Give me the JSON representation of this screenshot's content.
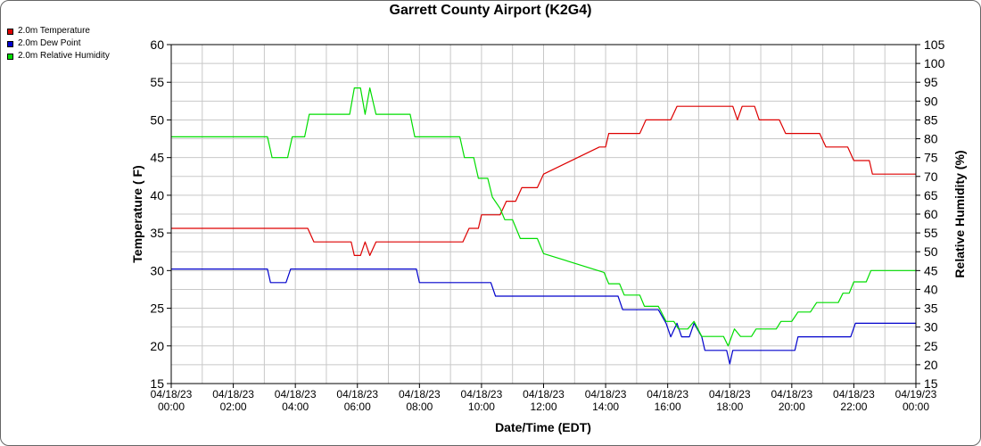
{
  "chart_data": {
    "type": "line",
    "title": "Garrett County Airport (K2G4)",
    "xlabel": "Date/Time (EDT)",
    "ylabel_left": "Temperature ( F)",
    "ylabel_right": "Relative Humidity (%)",
    "ylim_left": [
      15,
      60
    ],
    "ylim_right": [
      15,
      105
    ],
    "xlim_hours": [
      0,
      24
    ],
    "grid": true,
    "legend_position": "top-left",
    "yticks_left": [
      "15",
      "20",
      "25",
      "30",
      "35",
      "40",
      "45",
      "50",
      "55",
      "60"
    ],
    "yticks_right": [
      "15",
      "20",
      "25",
      "30",
      "35",
      "40",
      "45",
      "50",
      "55",
      "60",
      "65",
      "70",
      "75",
      "80",
      "85",
      "90",
      "95",
      "100",
      "105"
    ],
    "xticks": [
      {
        "date": "04/18/23",
        "time": "00:00"
      },
      {
        "date": "04/18/23",
        "time": "02:00"
      },
      {
        "date": "04/18/23",
        "time": "04:00"
      },
      {
        "date": "04/18/23",
        "time": "06:00"
      },
      {
        "date": "04/18/23",
        "time": "08:00"
      },
      {
        "date": "04/18/23",
        "time": "10:00"
      },
      {
        "date": "04/18/23",
        "time": "12:00"
      },
      {
        "date": "04/18/23",
        "time": "14:00"
      },
      {
        "date": "04/18/23",
        "time": "16:00"
      },
      {
        "date": "04/18/23",
        "time": "18:00"
      },
      {
        "date": "04/18/23",
        "time": "20:00"
      },
      {
        "date": "04/18/23",
        "time": "22:00"
      },
      {
        "date": "04/19/23",
        "time": "00:00"
      }
    ],
    "series": [
      {
        "name": "2.0m Temperature",
        "color": "#dd0000",
        "axis": "left",
        "points": [
          [
            0,
            35.6
          ],
          [
            4.4,
            35.6
          ],
          [
            4.6,
            33.8
          ],
          [
            5.8,
            33.8
          ],
          [
            5.9,
            32
          ],
          [
            6.1,
            32
          ],
          [
            6.25,
            33.8
          ],
          [
            6.4,
            32
          ],
          [
            6.6,
            33.8
          ],
          [
            9.4,
            33.8
          ],
          [
            9.6,
            35.6
          ],
          [
            9.9,
            35.6
          ],
          [
            10.0,
            37.4
          ],
          [
            10.6,
            37.4
          ],
          [
            10.8,
            39.2
          ],
          [
            11.1,
            39.2
          ],
          [
            11.3,
            41
          ],
          [
            11.8,
            41
          ],
          [
            12.0,
            42.8
          ],
          [
            13.8,
            46.4
          ],
          [
            14.0,
            46.4
          ],
          [
            14.1,
            48.2
          ],
          [
            15.1,
            48.2
          ],
          [
            15.3,
            50
          ],
          [
            16.1,
            50
          ],
          [
            16.3,
            51.8
          ],
          [
            18.1,
            51.8
          ],
          [
            18.25,
            50
          ],
          [
            18.4,
            51.8
          ],
          [
            18.8,
            51.8
          ],
          [
            18.95,
            50
          ],
          [
            19.6,
            50
          ],
          [
            19.8,
            48.2
          ],
          [
            20.9,
            48.2
          ],
          [
            21.1,
            46.4
          ],
          [
            21.8,
            46.4
          ],
          [
            22.0,
            44.6
          ],
          [
            22.5,
            44.6
          ],
          [
            22.6,
            42.8
          ],
          [
            24,
            42.8
          ]
        ]
      },
      {
        "name": "2.0m Dew Point",
        "color": "#0000cc",
        "axis": "left",
        "points": [
          [
            0,
            30.2
          ],
          [
            3.1,
            30.2
          ],
          [
            3.2,
            28.4
          ],
          [
            3.7,
            28.4
          ],
          [
            3.85,
            30.2
          ],
          [
            7.9,
            30.2
          ],
          [
            8.0,
            28.4
          ],
          [
            10.3,
            28.4
          ],
          [
            10.45,
            26.6
          ],
          [
            14.4,
            26.6
          ],
          [
            14.55,
            24.8
          ],
          [
            15.7,
            24.8
          ],
          [
            15.95,
            23
          ],
          [
            16.1,
            21.2
          ],
          [
            16.3,
            23
          ],
          [
            16.45,
            21.2
          ],
          [
            16.7,
            21.2
          ],
          [
            16.85,
            23
          ],
          [
            17.1,
            21.2
          ],
          [
            17.2,
            19.4
          ],
          [
            17.9,
            19.4
          ],
          [
            18.0,
            17.6
          ],
          [
            18.1,
            19.4
          ],
          [
            20.1,
            19.4
          ],
          [
            20.2,
            21.2
          ],
          [
            21.9,
            21.2
          ],
          [
            22.05,
            23
          ],
          [
            24,
            23
          ]
        ]
      },
      {
        "name": "2.0m Relative Humidity",
        "color": "#00dd00",
        "axis": "right",
        "points": [
          [
            0,
            80.5
          ],
          [
            3.1,
            80.5
          ],
          [
            3.25,
            75
          ],
          [
            3.75,
            75
          ],
          [
            3.9,
            80.5
          ],
          [
            4.3,
            80.5
          ],
          [
            4.45,
            86.5
          ],
          [
            5.75,
            86.5
          ],
          [
            5.9,
            93.5
          ],
          [
            6.1,
            93.5
          ],
          [
            6.25,
            86.5
          ],
          [
            6.4,
            93.5
          ],
          [
            6.6,
            86.5
          ],
          [
            7.7,
            86.5
          ],
          [
            7.85,
            80.5
          ],
          [
            9.3,
            80.5
          ],
          [
            9.45,
            75
          ],
          [
            9.75,
            75
          ],
          [
            9.9,
            69.5
          ],
          [
            10.2,
            69.5
          ],
          [
            10.35,
            64.5
          ],
          [
            10.6,
            61.5
          ],
          [
            10.75,
            58.5
          ],
          [
            11.0,
            58.5
          ],
          [
            11.25,
            53.5
          ],
          [
            11.8,
            53.5
          ],
          [
            12.0,
            49.5
          ],
          [
            13.95,
            44.5
          ],
          [
            14.1,
            41.5
          ],
          [
            14.45,
            41.5
          ],
          [
            14.6,
            38.5
          ],
          [
            15.1,
            38.5
          ],
          [
            15.25,
            35.5
          ],
          [
            15.7,
            35.5
          ],
          [
            15.95,
            31.5
          ],
          [
            16.2,
            31.5
          ],
          [
            16.35,
            29.5
          ],
          [
            16.65,
            29.5
          ],
          [
            16.85,
            31.5
          ],
          [
            17.1,
            27.5
          ],
          [
            17.8,
            27.5
          ],
          [
            17.95,
            25
          ],
          [
            18.15,
            29.5
          ],
          [
            18.35,
            27.5
          ],
          [
            18.7,
            27.5
          ],
          [
            18.85,
            29.5
          ],
          [
            19.5,
            29.5
          ],
          [
            19.65,
            31.5
          ],
          [
            20.0,
            31.5
          ],
          [
            20.2,
            34
          ],
          [
            20.6,
            34
          ],
          [
            20.8,
            36.5
          ],
          [
            21.5,
            36.5
          ],
          [
            21.65,
            39
          ],
          [
            21.85,
            39
          ],
          [
            22.0,
            42
          ],
          [
            22.4,
            42
          ],
          [
            22.55,
            45
          ],
          [
            24,
            45
          ]
        ]
      }
    ]
  }
}
